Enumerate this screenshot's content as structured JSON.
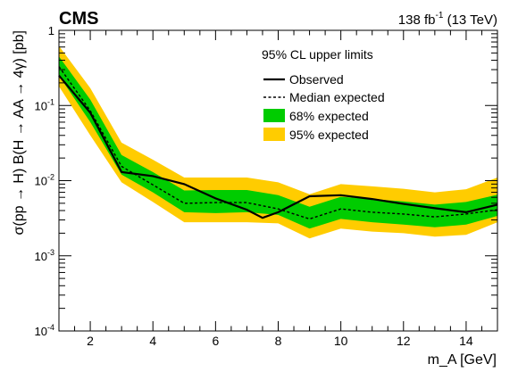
{
  "header": {
    "experiment": "CMS",
    "luminosity_prefix": "138 fb",
    "luminosity_exp": "-1",
    "energy": " (13 TeV)"
  },
  "colors": {
    "band95": "#ffcc00",
    "band68": "#00cc00",
    "observed": "#000000",
    "expected": "#000000"
  },
  "chart_data": {
    "type": "line",
    "title": "",
    "xlabel": "m_A [GeV]",
    "ylabel": "σ(pp → H) B(H → AA → 4γ) [pb]",
    "xlim": [
      1,
      15
    ],
    "ylim": [
      0.0001,
      1
    ],
    "yscale": "log",
    "x_ticks": [
      2,
      4,
      6,
      8,
      10,
      12,
      14
    ],
    "y_ticks": [
      {
        "value": 0.0001,
        "base": "10",
        "exp": "-4"
      },
      {
        "value": 0.001,
        "base": "10",
        "exp": "-3"
      },
      {
        "value": 0.01,
        "base": "10",
        "exp": "-2"
      },
      {
        "value": 0.1,
        "base": "10",
        "exp": "-1"
      },
      {
        "value": 1,
        "base": "1",
        "exp": ""
      }
    ],
    "legend": {
      "placement": "top-right",
      "header": "95% CL upper limits",
      "entries": [
        {
          "name": "Observed",
          "style": "solid"
        },
        {
          "name": "Median expected",
          "style": "dashed"
        },
        {
          "name": "68% expected",
          "style": "band68"
        },
        {
          "name": "95% expected",
          "style": "band95"
        }
      ]
    },
    "series": [
      {
        "name": "Observed",
        "x": [
          1,
          2,
          3,
          4,
          5,
          6,
          7,
          7.5,
          8,
          9,
          10,
          11,
          12,
          13,
          14,
          15
        ],
        "values": [
          0.25,
          0.08,
          0.013,
          0.0115,
          0.009,
          0.0058,
          0.0041,
          0.0032,
          0.0038,
          0.0062,
          0.0064,
          0.0057,
          0.0049,
          0.0043,
          0.0038,
          0.0048
        ]
      },
      {
        "name": "Median expected",
        "x": [
          1,
          2,
          3,
          4,
          5,
          6,
          7,
          8,
          9,
          10,
          11,
          12,
          13,
          14,
          15
        ],
        "values": [
          0.33,
          0.085,
          0.0155,
          0.0088,
          0.005,
          0.0051,
          0.0051,
          0.0042,
          0.0031,
          0.0042,
          0.0038,
          0.0036,
          0.0033,
          0.0036,
          0.0041
        ]
      }
    ],
    "bands": {
      "x": [
        1,
        2,
        3,
        4,
        5,
        6,
        7,
        8,
        9,
        10,
        11,
        12,
        13,
        14,
        15
      ],
      "band68_low": [
        0.25,
        0.06,
        0.012,
        0.007,
        0.0038,
        0.0037,
        0.0038,
        0.0035,
        0.0023,
        0.0031,
        0.0028,
        0.0026,
        0.0024,
        0.0026,
        0.0034
      ],
      "band68_high": [
        0.45,
        0.12,
        0.022,
        0.013,
        0.0074,
        0.0075,
        0.0075,
        0.0064,
        0.0045,
        0.0061,
        0.0057,
        0.0053,
        0.0048,
        0.0052,
        0.0065
      ],
      "band95_low": [
        0.18,
        0.04,
        0.0095,
        0.0052,
        0.0028,
        0.0028,
        0.0028,
        0.0027,
        0.0017,
        0.0023,
        0.0021,
        0.002,
        0.0018,
        0.0019,
        0.0028
      ],
      "band95_high": [
        0.62,
        0.17,
        0.032,
        0.019,
        0.011,
        0.011,
        0.011,
        0.0095,
        0.0066,
        0.009,
        0.0084,
        0.0078,
        0.007,
        0.0077,
        0.011
      ]
    }
  }
}
